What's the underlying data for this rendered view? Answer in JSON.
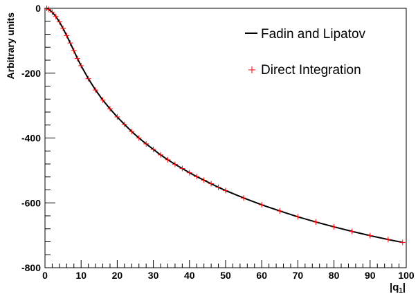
{
  "chart_data": {
    "type": "line",
    "title": "",
    "xlabel": "|q",
    "xlabel_sub": "1",
    "xlabel_suffix": "|",
    "ylabel": "Arbitrary units",
    "xlim": [
      0,
      100
    ],
    "ylim": [
      -800,
      0
    ],
    "x_ticks": [
      0,
      10,
      20,
      30,
      40,
      50,
      60,
      70,
      80,
      90,
      100
    ],
    "y_ticks": [
      -800,
      -600,
      -400,
      -200,
      0
    ],
    "grid": false,
    "legend_position": "top-right",
    "series": [
      {
        "name": "Fadin and Lipatov",
        "style": "line",
        "color": "#000000",
        "x": [
          0.5,
          1,
          2,
          3,
          4,
          5,
          6,
          7,
          8,
          9,
          10,
          12,
          14,
          16,
          18,
          20,
          22,
          24,
          26,
          28,
          30,
          32,
          34,
          36,
          38,
          40,
          42,
          44,
          46,
          48,
          50,
          55,
          60,
          65,
          70,
          75,
          80,
          85,
          90,
          95,
          99
        ],
        "y": [
          0,
          -3,
          -12,
          -25,
          -42,
          -62,
          -84,
          -107,
          -131,
          -155,
          -177,
          -217,
          -252,
          -283,
          -310,
          -335,
          -358,
          -380,
          -400,
          -418,
          -435,
          -452,
          -467,
          -481,
          -494,
          -507,
          -519,
          -530,
          -541,
          -552,
          -562,
          -585,
          -606,
          -625,
          -643,
          -659,
          -674,
          -688,
          -701,
          -713,
          -722
        ]
      },
      {
        "name": "Direct Integration",
        "style": "markers",
        "marker": "+",
        "color": "#ff0000",
        "x": [
          0.5,
          1,
          2,
          3,
          4,
          5,
          6,
          7,
          8,
          9,
          10,
          12,
          14,
          16,
          18,
          20,
          22,
          24,
          26,
          28,
          30,
          32,
          34,
          36,
          38,
          40,
          42,
          44,
          46,
          48,
          50,
          55,
          60,
          65,
          70,
          75,
          80,
          85,
          90,
          95,
          99
        ],
        "y": [
          0,
          -3,
          -12,
          -25,
          -42,
          -62,
          -84,
          -107,
          -131,
          -155,
          -177,
          -217,
          -252,
          -283,
          -310,
          -335,
          -358,
          -380,
          -400,
          -418,
          -435,
          -452,
          -467,
          -481,
          -494,
          -507,
          -519,
          -530,
          -541,
          -552,
          -562,
          -585,
          -606,
          -625,
          -643,
          -659,
          -674,
          -688,
          -701,
          -713,
          -722
        ]
      }
    ]
  }
}
